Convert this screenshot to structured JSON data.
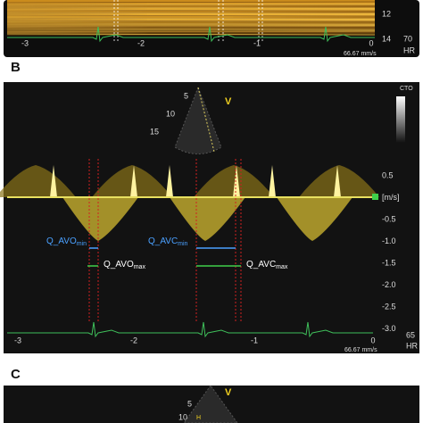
{
  "panels": [
    {
      "y_labels": [
        "12",
        "14"
      ],
      "hr_value": "70",
      "hr_unit": "HR",
      "x_labels": [
        "-3",
        "-2",
        "-1",
        "0"
      ],
      "speed": "66.67 mm/s"
    },
    {
      "label": "B",
      "probe": {
        "marker": "V",
        "depths": [
          "5",
          "10",
          "15"
        ]
      },
      "scale_label": "CTO",
      "y_labels": [
        "0.5",
        "[m/s]",
        "-0.5",
        "-1.0",
        "-1.5",
        "-2.0",
        "-2.5",
        "-3.0"
      ],
      "hr_value": "65",
      "hr_unit": "HR",
      "x_labels": [
        "-3",
        "-2",
        "-1",
        "0"
      ],
      "speed": "66.67 mm/s",
      "annotations": [
        {
          "text": "Q_AVO",
          "sub": "min"
        },
        {
          "text": "Q_AVO",
          "sub": "max"
        },
        {
          "text": "Q_AVC",
          "sub": "min"
        },
        {
          "text": "Q_AVC",
          "sub": "max"
        }
      ]
    },
    {
      "label": "C",
      "probe": {
        "marker": "V",
        "depths": [
          "5",
          "10"
        ]
      },
      "side_label": "H"
    }
  ]
}
